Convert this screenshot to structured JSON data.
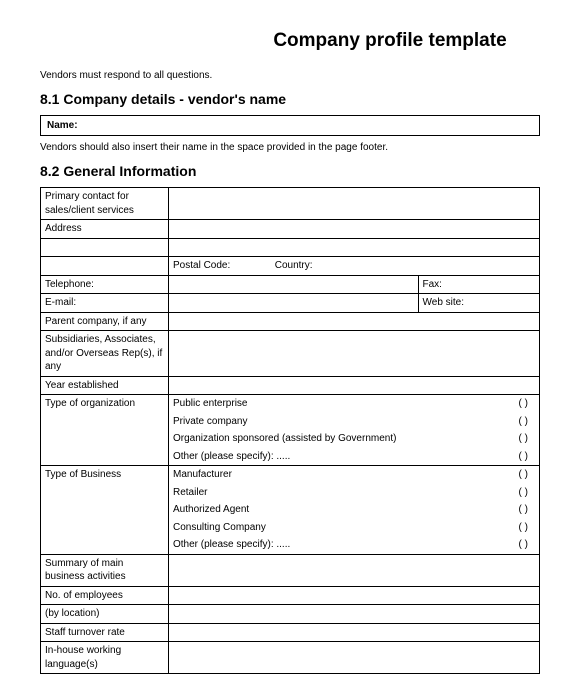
{
  "title": "Company profile template",
  "intro": "Vendors must respond to all questions.",
  "section81": {
    "heading": "8.1  Company details - vendor's name",
    "name_label": "Name:",
    "footer_note": "Vendors should also insert their name in the space provided in the page footer."
  },
  "section82": {
    "heading": "8.2  General Information",
    "rows": {
      "primary_contact": "Primary contact for sales/client services",
      "address": "Address",
      "postal_code": "Postal Code:",
      "country": "Country:",
      "telephone": "Telephone:",
      "fax": "Fax:",
      "email": "E-mail:",
      "website": "Web site:",
      "parent_company": "Parent company, if any",
      "subsidiaries": "Subsidiaries, Associates, and/or Overseas Rep(s), if any",
      "year_established": "Year established",
      "type_org": "Type of organization",
      "type_business": "Type of Business",
      "summary": "Summary of main business activities",
      "employees": "No. of employees",
      "by_location": "(by location)",
      "turnover": "Staff turnover rate",
      "languages": "In-house working language(s)"
    },
    "org_options": [
      "Public enterprise",
      "Private company",
      "Organization sponsored (assisted by Government)",
      "Other (please specify): ....."
    ],
    "business_options": [
      "Manufacturer",
      "Retailer",
      "Authorized Agent",
      "Consulting Company",
      "Other (please specify): ....."
    ],
    "paren": "( )"
  },
  "colors": {
    "text": "#000000",
    "background": "#ffffff",
    "border": "#000000"
  }
}
